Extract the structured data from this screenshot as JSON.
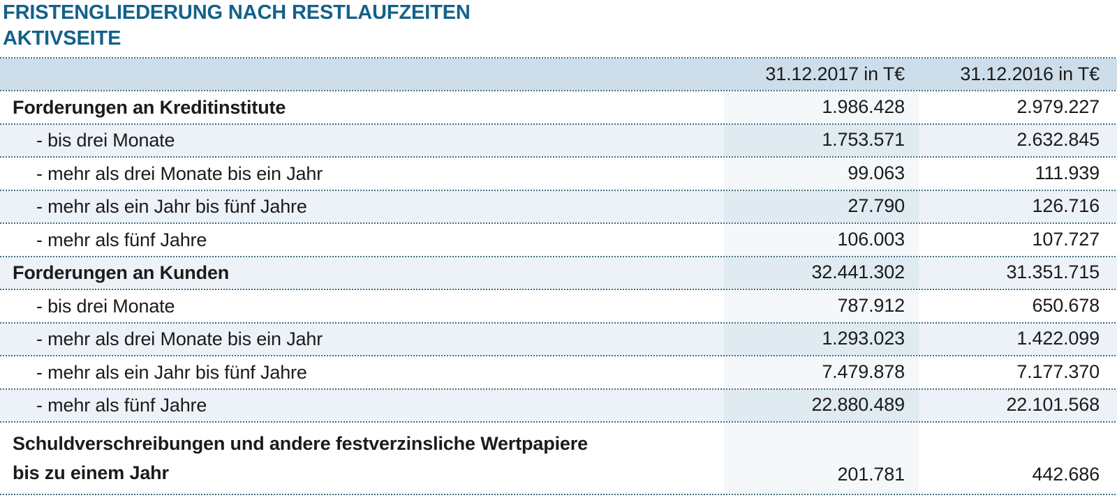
{
  "titles": {
    "line1": "FRISTENGLIEDERUNG NACH RESTLAUFZEITEN",
    "line2": "AKTIVSEITE"
  },
  "table": {
    "col2017": "31.12.2017 in T€",
    "col2016": "31.12.2016 in T€",
    "rows": [
      {
        "label": "Forderungen an Kreditinstitute",
        "bold": true,
        "indent": false,
        "striped": false,
        "v2017": "1.986.428",
        "v2016": "2.979.227"
      },
      {
        "label": "- bis drei Monate",
        "bold": false,
        "indent": true,
        "striped": true,
        "v2017": "1.753.571",
        "v2016": "2.632.845"
      },
      {
        "label": "- mehr als drei Monate bis ein Jahr",
        "bold": false,
        "indent": true,
        "striped": false,
        "v2017": "99.063",
        "v2016": "111.939"
      },
      {
        "label": "- mehr als ein Jahr bis fünf Jahre",
        "bold": false,
        "indent": true,
        "striped": true,
        "v2017": "27.790",
        "v2016": "126.716"
      },
      {
        "label": "- mehr als fünf Jahre",
        "bold": false,
        "indent": true,
        "striped": false,
        "v2017": "106.003",
        "v2016": "107.727"
      },
      {
        "label": "Forderungen an Kunden",
        "bold": true,
        "indent": false,
        "striped": true,
        "v2017": "32.441.302",
        "v2016": "31.351.715"
      },
      {
        "label": "- bis drei Monate",
        "bold": false,
        "indent": true,
        "striped": false,
        "v2017": "787.912",
        "v2016": "650.678"
      },
      {
        "label": "- mehr als drei Monate bis ein Jahr",
        "bold": false,
        "indent": true,
        "striped": true,
        "v2017": "1.293.023",
        "v2016": "1.422.099"
      },
      {
        "label": "- mehr als ein Jahr bis fünf Jahre",
        "bold": false,
        "indent": true,
        "striped": false,
        "v2017": "7.479.878",
        "v2016": "7.177.370"
      },
      {
        "label": "- mehr als fünf Jahre",
        "bold": false,
        "indent": true,
        "striped": true,
        "v2017": "22.880.489",
        "v2016": "22.101.568"
      },
      {
        "label": "Schuldverschreibungen und andere festverzinsliche Wertpapiere",
        "label_line2": "bis zu einem Jahr",
        "bold": true,
        "indent": false,
        "striped": false,
        "v2017": "201.781",
        "v2016": "442.686"
      }
    ]
  },
  "colors": {
    "text": "#1b1b1b",
    "title": "#13618a",
    "dot": "#426a7e",
    "headerbg": "#cddde9",
    "stripe": "#ecf2f7",
    "v17white": "#f5f8fa",
    "v17stripe": "#dfeaf1"
  }
}
